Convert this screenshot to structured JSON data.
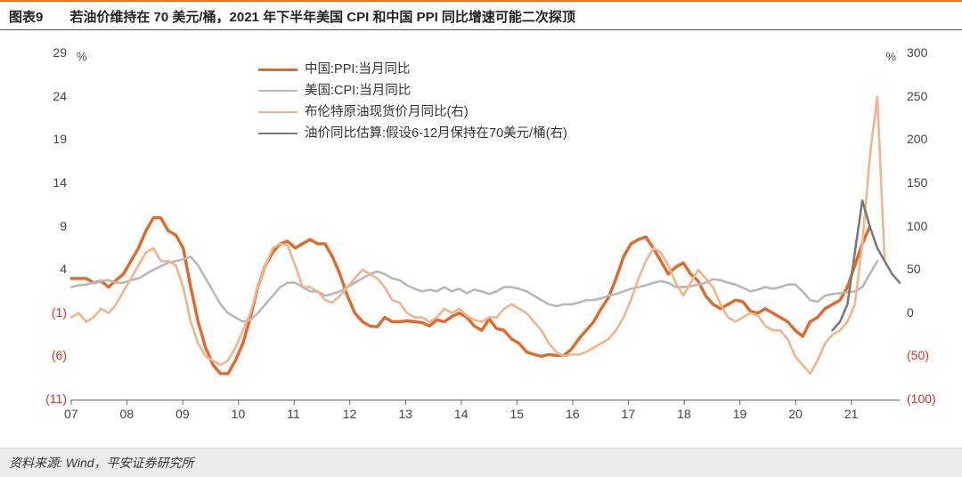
{
  "header": {
    "fig_number": "图表9",
    "title": "若油价维持在 70 美元/桶，2021 年下半年美国 CPI 和中国 PPI 同比增速可能二次探顶"
  },
  "source": "资料来源: Wind，平安证券研究所",
  "chart": {
    "type": "line",
    "background_color": "#ffffff",
    "x_categories": [
      "07",
      "08",
      "09",
      "10",
      "11",
      "12",
      "13",
      "14",
      "15",
      "16",
      "17",
      "18",
      "19",
      "20",
      "21"
    ],
    "left_axis": {
      "unit": "%",
      "ticks": [
        -11,
        -6,
        -1,
        4,
        9,
        14,
        19,
        24,
        29
      ],
      "negative_color": "#d62f2f",
      "positive_color": "#444444"
    },
    "right_axis": {
      "unit": "%",
      "ticks": [
        -100,
        -50,
        0,
        50,
        100,
        150,
        200,
        250,
        300
      ],
      "negative_color": "#d62f2f",
      "positive_color": "#444444"
    },
    "legend_position": "top-center",
    "series": [
      {
        "id": "china_ppi",
        "label": "中国:PPI:当月同比",
        "axis": "left",
        "color": "#e06a2b",
        "width": 3.4,
        "data": [
          3,
          3,
          3,
          2.5,
          2.7,
          2,
          2.8,
          3.5,
          5,
          6.5,
          8.5,
          10,
          10,
          8.5,
          8,
          6.5,
          2,
          -2,
          -5,
          -7,
          -8,
          -8,
          -6.5,
          -4.5,
          -1.5,
          2,
          4.5,
          6,
          7,
          7.3,
          6.5,
          7,
          7.5,
          7,
          7,
          5.5,
          3.5,
          1,
          -1,
          -2,
          -2.5,
          -2.6,
          -1.5,
          -2,
          -2,
          -1.9,
          -2,
          -2.1,
          -2.5,
          -1.8,
          -2,
          -1.4,
          -1,
          -1.5,
          -2.5,
          -3,
          -1.7,
          -2.8,
          -3,
          -4,
          -4.5,
          -5.5,
          -5.8,
          -6,
          -5.8,
          -5.9,
          -5.9,
          -5.2,
          -4,
          -3,
          -2,
          -0.5,
          0.8,
          3,
          5.5,
          7,
          7.5,
          7.8,
          6.5,
          5,
          3.5,
          4.3,
          4.8,
          3.5,
          2.7,
          1,
          0,
          -0.5,
          0,
          0.5,
          0.3,
          -0.8,
          -1,
          -0.5,
          -1,
          -1.5,
          -2,
          -3,
          -3.7,
          -2,
          -1.5,
          -0.5,
          0,
          0.5,
          2,
          4.5,
          7,
          9
        ]
      },
      {
        "id": "us_cpi",
        "label": "美国:CPI:当月同比",
        "axis": "left",
        "color": "#b8b8b8",
        "width": 2.6,
        "data": [
          2,
          2.2,
          2.3,
          2.5,
          2.7,
          2.8,
          2.5,
          2.5,
          2.8,
          3,
          3.5,
          4,
          4.4,
          4.8,
          5,
          5.2,
          5.5,
          4.5,
          3,
          1.5,
          0,
          -1,
          -1.5,
          -2,
          -1.8,
          -1,
          0,
          1,
          2,
          2.5,
          2.5,
          2,
          1.5,
          1.5,
          1,
          1.2,
          1.5,
          2,
          2.5,
          3,
          3.5,
          3.8,
          3.5,
          3,
          2.8,
          2.2,
          1.8,
          1.5,
          1.7,
          1.5,
          2,
          1.5,
          1.8,
          1.3,
          1.7,
          1.5,
          1.2,
          1.5,
          2,
          2,
          1.8,
          1.5,
          1,
          0.5,
          0,
          -0.2,
          0,
          0,
          0.2,
          0.5,
          0.5,
          0.7,
          1,
          1.2,
          1.5,
          1.8,
          2,
          2.2,
          2.5,
          2.7,
          2.5,
          2,
          2,
          2.1,
          2.3,
          2.5,
          2.9,
          2.8,
          2.5,
          2.3,
          1.9,
          1.5,
          1.7,
          2,
          1.8,
          2,
          2.3,
          2.3,
          1.5,
          0.5,
          0.3,
          1,
          1.2,
          1.3,
          1.4,
          1.5,
          2,
          3.5,
          5
        ]
      },
      {
        "id": "brent_yoy",
        "label": "布伦特原油现货价月同比(右)",
        "axis": "right",
        "color": "#f2b48a",
        "width": 2.6,
        "data": [
          -5,
          0,
          -10,
          -5,
          5,
          0,
          10,
          25,
          40,
          55,
          70,
          75,
          60,
          60,
          55,
          30,
          -10,
          -35,
          -50,
          -55,
          -60,
          -55,
          -40,
          -20,
          0,
          30,
          55,
          75,
          80,
          78,
          55,
          30,
          30,
          25,
          15,
          12,
          20,
          30,
          40,
          50,
          45,
          40,
          30,
          15,
          12,
          0,
          -5,
          -5,
          -10,
          -5,
          5,
          0,
          5,
          -3,
          -8,
          -10,
          -5,
          -5,
          5,
          10,
          5,
          0,
          -10,
          -20,
          -35,
          -45,
          -50,
          -48,
          -48,
          -45,
          -40,
          -35,
          -30,
          -20,
          -5,
          15,
          40,
          60,
          75,
          70,
          55,
          35,
          20,
          35,
          50,
          40,
          30,
          10,
          -5,
          -10,
          -5,
          0,
          -3,
          -15,
          -20,
          -20,
          -30,
          -50,
          -60,
          -70,
          -55,
          -35,
          -25,
          -20,
          -10,
          10,
          80,
          180,
          250,
          60
        ]
      },
      {
        "id": "oil_est",
        "label": "油价同比估算:假设6-12月保持在70美元/桶(右)",
        "axis": "right",
        "color": "#7a7a7a",
        "width": 2.6,
        "start_index": 102,
        "data": [
          -20,
          -10,
          10,
          70,
          130,
          100,
          75,
          60,
          45,
          35
        ]
      }
    ],
    "label_fontsize": 14,
    "title_fontsize": 15
  }
}
